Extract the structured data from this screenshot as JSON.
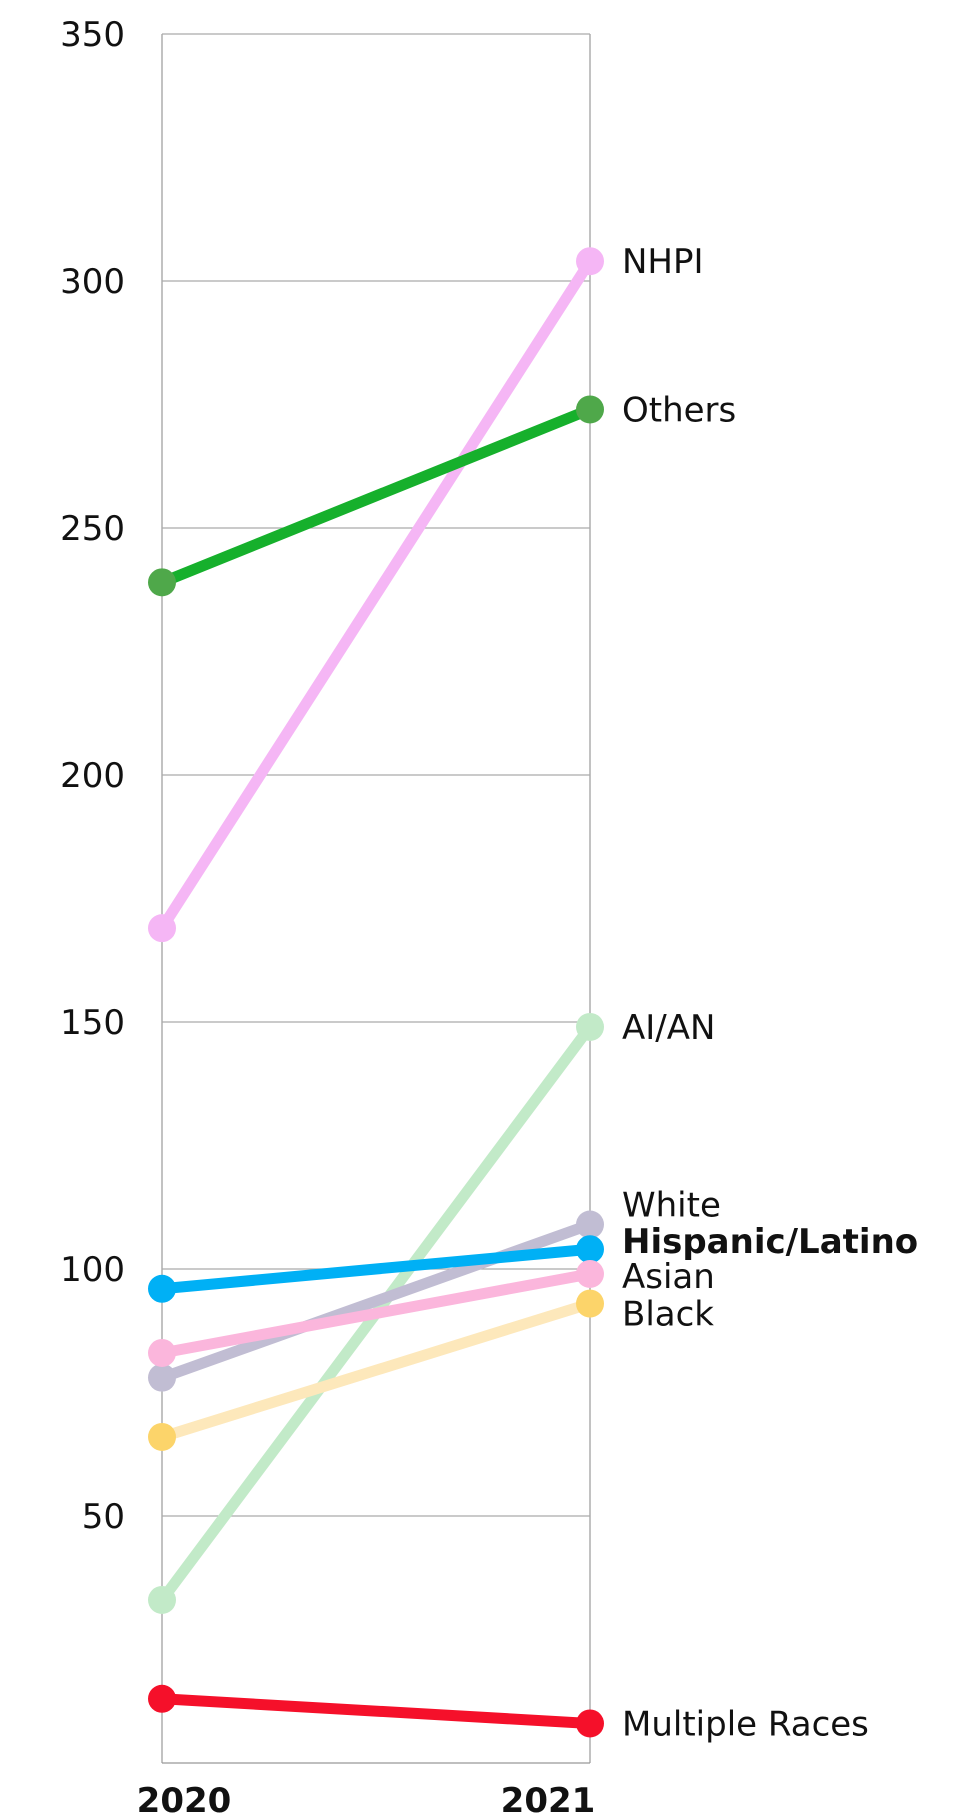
{
  "chart_data": {
    "type": "line",
    "title": "",
    "xlabel": "",
    "ylabel": "",
    "x": [
      "2020",
      "2021"
    ],
    "ylim": [
      0,
      350
    ],
    "yticks": [
      50,
      100,
      150,
      200,
      250,
      300,
      350
    ],
    "grid": true,
    "series": [
      {
        "name": "NHPI",
        "values": [
          169,
          304
        ],
        "color": "#f5b6f5",
        "marker_color": "#f5b6f5",
        "bold": false
      },
      {
        "name": "Others",
        "values": [
          239,
          274
        ],
        "color": "#16b02c",
        "marker_color": "#4fa84a",
        "bold": false
      },
      {
        "name": "AI/AN",
        "values": [
          33,
          149
        ],
        "color": "#c2eac8",
        "marker_color": "#c2eac8",
        "bold": false
      },
      {
        "name": "White",
        "values": [
          78,
          109
        ],
        "color": "#c1bdd3",
        "marker_color": "#c1bdd3",
        "bold": false
      },
      {
        "name": "Hispanic/Latino",
        "values": [
          96,
          104
        ],
        "color": "#00b0f5",
        "marker_color": "#00b0f5",
        "bold": true
      },
      {
        "name": "Asian",
        "values": [
          83,
          99
        ],
        "color": "#fbb6dc",
        "marker_color": "#fbb6dc",
        "bold": false
      },
      {
        "name": "Black",
        "values": [
          66,
          93
        ],
        "color": "#fde8bb",
        "marker_color": "#fcd46a",
        "bold": false
      },
      {
        "name": "Multiple Races",
        "values": [
          13,
          8
        ],
        "color": "#f5102a",
        "marker_color": "#f5102a",
        "bold": false
      }
    ]
  }
}
